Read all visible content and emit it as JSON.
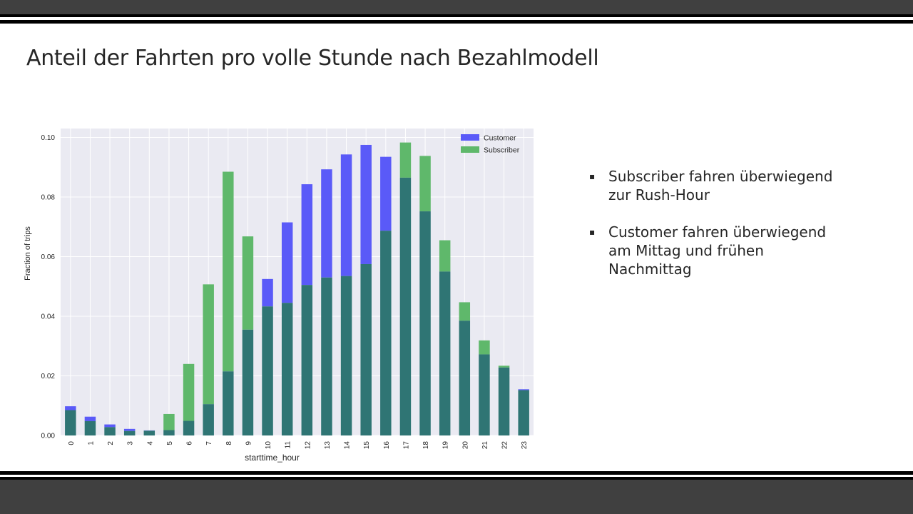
{
  "slide": {
    "title": "Anteil der Fahrten pro volle Stunde nach Bezahlmodell",
    "bullet_symbol": "▪",
    "bullets": [
      "Subscriber fahren überwiegend\nzur Rush-Hour",
      "Customer fahren überwiegend\nam Mittag und frühen\nNachmittag"
    ]
  },
  "colors": {
    "customer": "#5a5af8",
    "subscriber": "#5fb86b",
    "overlap": "#2f7574",
    "plot_background": "#eaeaf2",
    "grid": "#ffffff",
    "header_bar": "#404040"
  },
  "chart_data": {
    "type": "bar",
    "title": "",
    "xlabel": "starttime_hour",
    "ylabel": "Fraction of trips",
    "ylim": [
      0,
      0.103
    ],
    "yticks": [
      "0.00",
      "0.02",
      "0.04",
      "0.06",
      "0.08",
      "0.10"
    ],
    "grid": true,
    "legend_position": "top-right",
    "overlay": true,
    "categories": [
      "0",
      "1",
      "2",
      "3",
      "4",
      "5",
      "6",
      "7",
      "8",
      "9",
      "10",
      "11",
      "12",
      "13",
      "14",
      "15",
      "16",
      "17",
      "18",
      "19",
      "20",
      "21",
      "22",
      "23"
    ],
    "series": [
      {
        "name": "Customer",
        "values": [
          0.0098,
          0.0063,
          0.0037,
          0.0022,
          0.0017,
          0.0018,
          0.0049,
          0.0105,
          0.0215,
          0.0355,
          0.0525,
          0.0715,
          0.0843,
          0.0893,
          0.0943,
          0.0975,
          0.0935,
          0.0865,
          0.0752,
          0.055,
          0.0385,
          0.0272,
          0.0228,
          0.0155
        ]
      },
      {
        "name": "Subscriber",
        "values": [
          0.0085,
          0.0048,
          0.0028,
          0.0015,
          0.0016,
          0.0072,
          0.024,
          0.0507,
          0.0885,
          0.0668,
          0.0433,
          0.0445,
          0.0505,
          0.053,
          0.0535,
          0.0575,
          0.0687,
          0.0983,
          0.0938,
          0.0655,
          0.0447,
          0.0319,
          0.0234,
          0.0152
        ]
      }
    ]
  }
}
